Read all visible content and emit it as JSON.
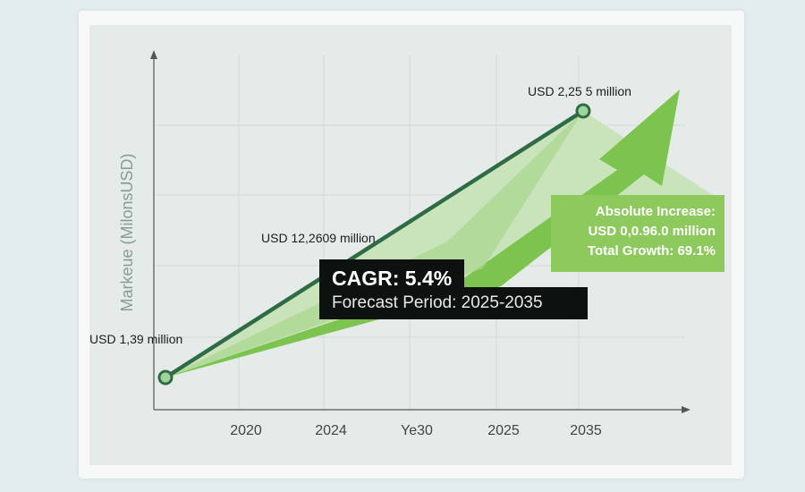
{
  "chart_data": {
    "type": "line",
    "title": "",
    "ylabel": "Markeue (MilonsUSD)",
    "xlabel": "",
    "categories": [
      "2020",
      "2024",
      "Ye30",
      "2025",
      "2035"
    ],
    "grid": true,
    "series": [
      {
        "values_labels": [
          "USD 1,39 million",
          "USD 12,2609 million",
          "USD 2,25 5 million"
        ]
      }
    ],
    "annotations": {
      "start": "USD 1,39 million",
      "mid": "USD 12,2609 million",
      "end": "USD 2,25 5 million"
    },
    "cagr": "CAGR: 5.4%",
    "forecast_period": "Forecast Period: 2025-2035",
    "summary": {
      "line1": "Absolute Increase:",
      "line2": "USD 0,0.96.0 million",
      "line3": "Total Growth: 69.1%"
    },
    "colors": {
      "line": "#2f6b45",
      "arrow": "#7cc44f",
      "arrow_light": "#b5dca0",
      "callout_bg": "#0d1211",
      "summary_bg": "#8dc95d"
    }
  }
}
